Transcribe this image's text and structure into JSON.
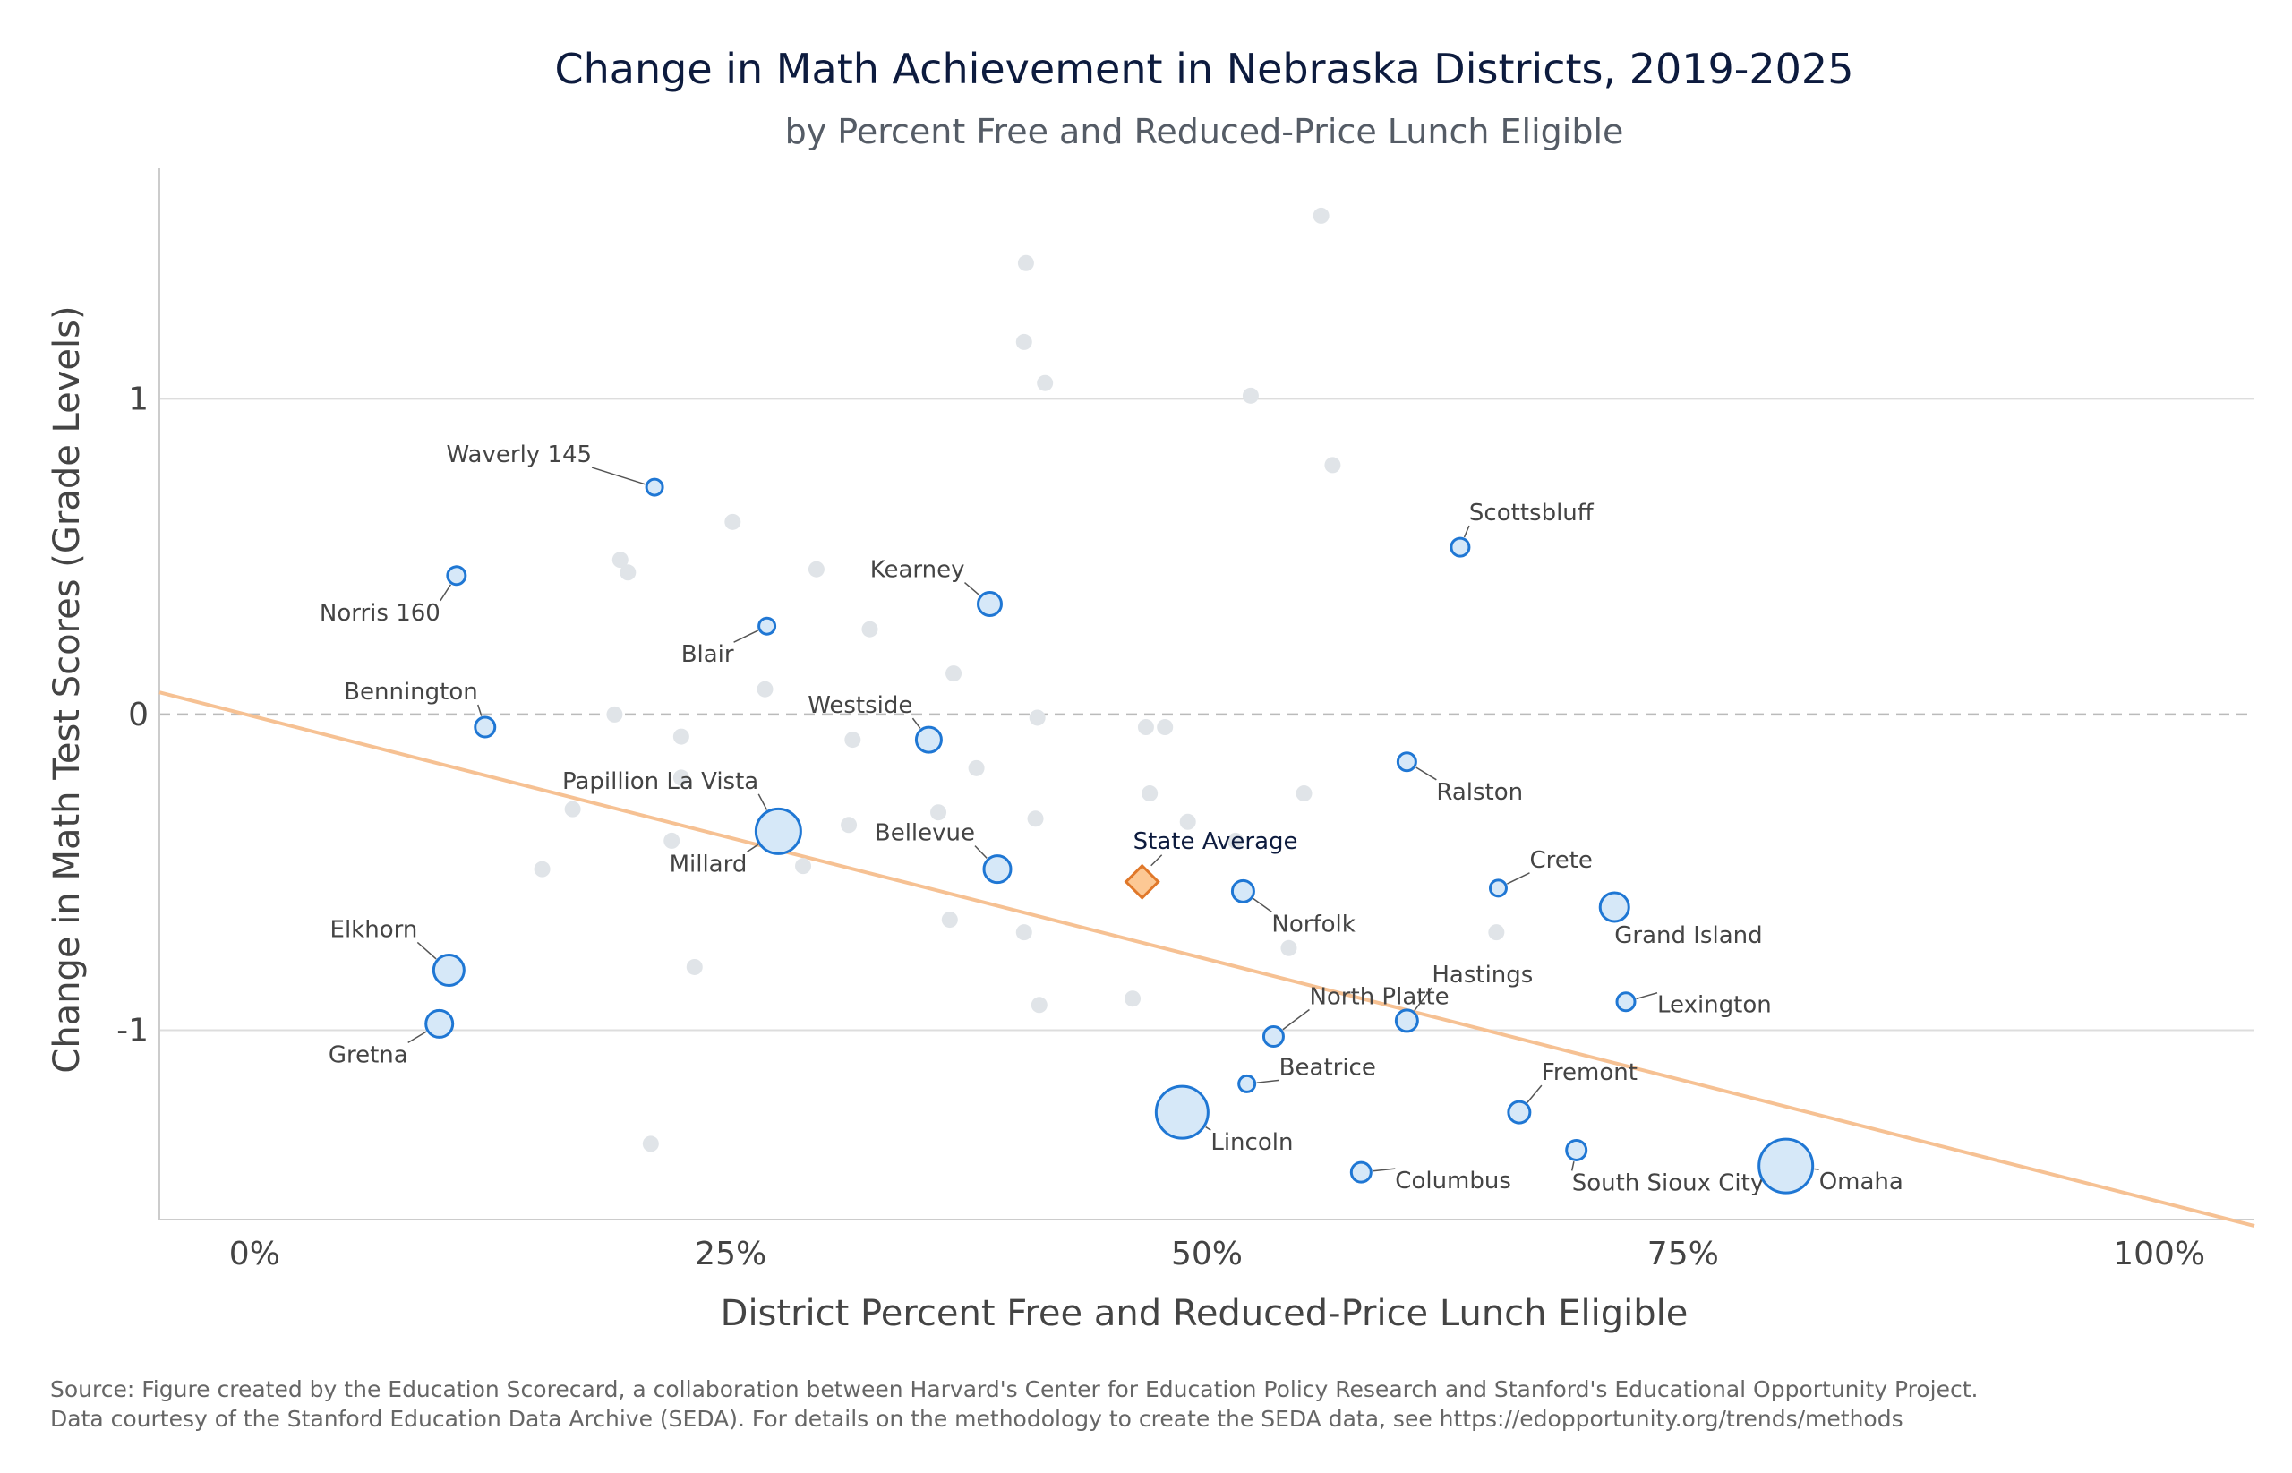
{
  "chart_data": {
    "type": "scatter",
    "title": "Change in Math Achievement in Nebraska Districts, 2019-2025",
    "subtitle": "by Percent Free and Reduced-Price Lunch Eligible",
    "xlabel": "District Percent Free and Reduced-Price Lunch Eligible",
    "ylabel": "Change in Math Test Scores (Grade Levels)",
    "xlim": [
      -0.05,
      1.05
    ],
    "ylim": [
      -1.6,
      1.73
    ],
    "x_ticks": [
      {
        "value": 0,
        "label": "0%"
      },
      {
        "value": 0.25,
        "label": "25%"
      },
      {
        "value": 0.5,
        "label": "50%"
      },
      {
        "value": 0.75,
        "label": "75%"
      },
      {
        "value": 1.0,
        "label": "100%"
      }
    ],
    "y_ticks": [
      {
        "value": 1,
        "label": "1"
      },
      {
        "value": 0,
        "label": "0"
      },
      {
        "value": -1,
        "label": "-1"
      }
    ],
    "grid": true,
    "reference_line_y": 0,
    "trend_line": {
      "x": [
        -0.05,
        1.05
      ],
      "y": [
        0.07,
        -1.62
      ],
      "color": "#f6c193"
    },
    "colors": {
      "labeled_fill": "#d6e8f8",
      "labeled_stroke": "#1f77d4",
      "unlabeled": "#e0e4e8",
      "state_fill": "#fcc894",
      "state_stroke": "#e0782a",
      "gridline": "#dddddd",
      "zero_line": "#bbbbbb"
    },
    "state_average": {
      "name": "State Average",
      "x": 0.466,
      "y": -0.53
    },
    "labeled_districts": [
      {
        "name": "Waverly 145",
        "x": 0.21,
        "y": 0.72,
        "size": 9
      },
      {
        "name": "Norris 160",
        "x": 0.106,
        "y": 0.44,
        "size": 10
      },
      {
        "name": "Scottsbluff",
        "x": 0.633,
        "y": 0.53,
        "size": 10
      },
      {
        "name": "Kearney",
        "x": 0.386,
        "y": 0.35,
        "size": 13
      },
      {
        "name": "Blair",
        "x": 0.269,
        "y": 0.28,
        "size": 9
      },
      {
        "name": "Bennington",
        "x": 0.121,
        "y": -0.04,
        "size": 11
      },
      {
        "name": "Westside",
        "x": 0.354,
        "y": -0.08,
        "size": 14
      },
      {
        "name": "Ralston",
        "x": 0.605,
        "y": -0.15,
        "size": 10
      },
      {
        "name": "Papillion La Vista",
        "x": 0.274,
        "y": -0.36,
        "size": 21
      },
      {
        "name": "Millard",
        "x": 0.275,
        "y": -0.37,
        "size": 25
      },
      {
        "name": "Bellevue",
        "x": 0.39,
        "y": -0.49,
        "size": 15
      },
      {
        "name": "Norfolk",
        "x": 0.519,
        "y": -0.56,
        "size": 12
      },
      {
        "name": "Crete",
        "x": 0.653,
        "y": -0.55,
        "size": 9
      },
      {
        "name": "Grand Island",
        "x": 0.714,
        "y": -0.61,
        "size": 16
      },
      {
        "name": "Elkhorn",
        "x": 0.102,
        "y": -0.81,
        "size": 17
      },
      {
        "name": "Hastings",
        "x": 0.605,
        "y": -0.97,
        "size": 12
      },
      {
        "name": "North Platte",
        "x": 0.535,
        "y": -1.02,
        "size": 11
      },
      {
        "name": "Lexington",
        "x": 0.72,
        "y": -0.91,
        "size": 10
      },
      {
        "name": "Gretna",
        "x": 0.097,
        "y": -0.98,
        "size": 15
      },
      {
        "name": "Beatrice",
        "x": 0.521,
        "y": -1.17,
        "size": 9
      },
      {
        "name": "Fremont",
        "x": 0.664,
        "y": -1.26,
        "size": 12
      },
      {
        "name": "Lincoln",
        "x": 0.487,
        "y": -1.26,
        "size": 29
      },
      {
        "name": "Columbus",
        "x": 0.581,
        "y": -1.45,
        "size": 11
      },
      {
        "name": "South Sioux City",
        "x": 0.694,
        "y": -1.38,
        "size": 11
      },
      {
        "name": "Omaha",
        "x": 0.804,
        "y": -1.43,
        "size": 30
      }
    ],
    "other_districts": [
      [
        0.56,
        1.58
      ],
      [
        0.405,
        1.43
      ],
      [
        0.404,
        1.18
      ],
      [
        0.415,
        1.05
      ],
      [
        0.523,
        1.01
      ],
      [
        0.566,
        0.79
      ],
      [
        0.251,
        0.61
      ],
      [
        0.192,
        0.49
      ],
      [
        0.196,
        0.45
      ],
      [
        0.295,
        0.46
      ],
      [
        0.323,
        0.27
      ],
      [
        0.367,
        0.13
      ],
      [
        0.268,
        0.08
      ],
      [
        0.189,
        0.0
      ],
      [
        0.411,
        -0.01
      ],
      [
        0.224,
        -0.07
      ],
      [
        0.314,
        -0.08
      ],
      [
        0.468,
        -0.04
      ],
      [
        0.478,
        -0.04
      ],
      [
        0.379,
        -0.17
      ],
      [
        0.224,
        -0.2
      ],
      [
        0.47,
        -0.25
      ],
      [
        0.551,
        -0.25
      ],
      [
        0.167,
        -0.3
      ],
      [
        0.359,
        -0.31
      ],
      [
        0.41,
        -0.33
      ],
      [
        0.49,
        -0.34
      ],
      [
        0.312,
        -0.35
      ],
      [
        0.515,
        -0.4
      ],
      [
        0.219,
        -0.4
      ],
      [
        0.151,
        -0.49
      ],
      [
        0.288,
        -0.48
      ],
      [
        0.365,
        -0.65
      ],
      [
        0.404,
        -0.69
      ],
      [
        0.652,
        -0.69
      ],
      [
        0.543,
        -0.74
      ],
      [
        0.231,
        -0.8
      ],
      [
        0.461,
        -0.9
      ],
      [
        0.412,
        -0.92
      ],
      [
        0.208,
        -1.36
      ]
    ]
  }
}
